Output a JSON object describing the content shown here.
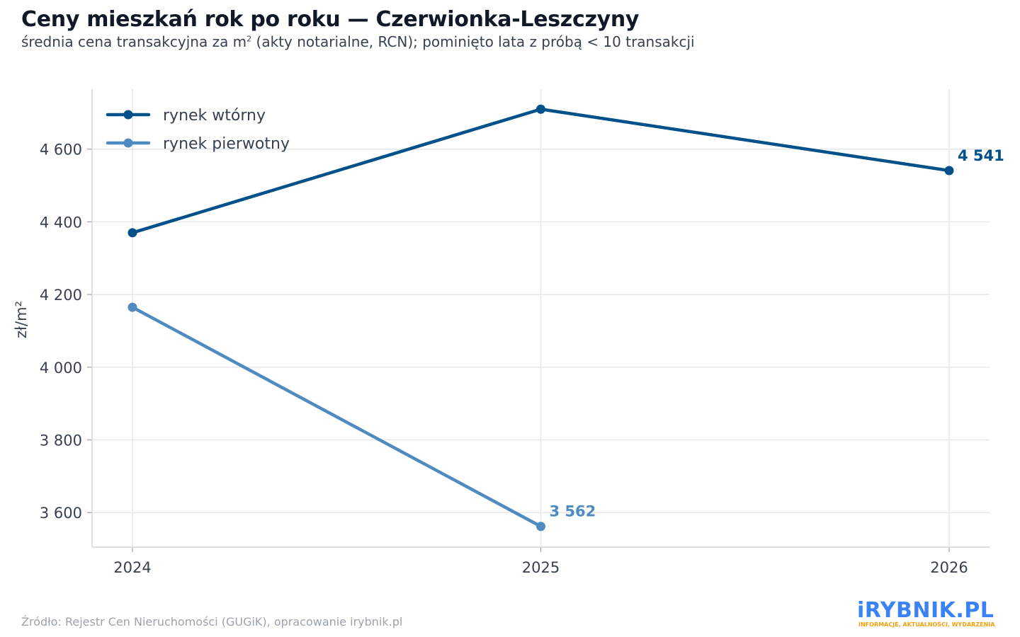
{
  "header": {
    "title": "Ceny mieszkań rok po roku — Czerwionka-Leszczyny",
    "subtitle_pre": "średnia cena transakcyjna za m",
    "subtitle_sup": "2",
    "subtitle_post": " (akty notarialne, RCN); pominięto lata z próbą < 10 transakcji"
  },
  "chart_data": {
    "type": "line",
    "x": [
      "2024",
      "2025",
      "2026"
    ],
    "ylabel": "zł/m²",
    "ylim": [
      3505,
      4765
    ],
    "yticks": [
      3600,
      3800,
      4000,
      4200,
      4400,
      4600
    ],
    "ytick_labels": [
      "3 600",
      "3 800",
      "4 000",
      "4 200",
      "4 400",
      "4 600"
    ],
    "grid": true,
    "legend_position": "top-left",
    "series": [
      {
        "name": "rynek wtórny",
        "color": "#00508a",
        "values": [
          4370,
          4710,
          4541
        ],
        "end_label": "4 541"
      },
      {
        "name": "rynek pierwotny",
        "color": "#4f8ac0",
        "values": [
          4165,
          3562,
          null
        ],
        "end_label": "3 562"
      }
    ]
  },
  "footer": {
    "source": "Źródło: Rejestr Cen Nieruchomości (GUGiK), opracowanie irybnik.pl",
    "logo_text": "iRYBNIK.PL",
    "logo_tagline": "INFORMACJE, AKTUALNOŚCI, WYDARZENIA"
  }
}
